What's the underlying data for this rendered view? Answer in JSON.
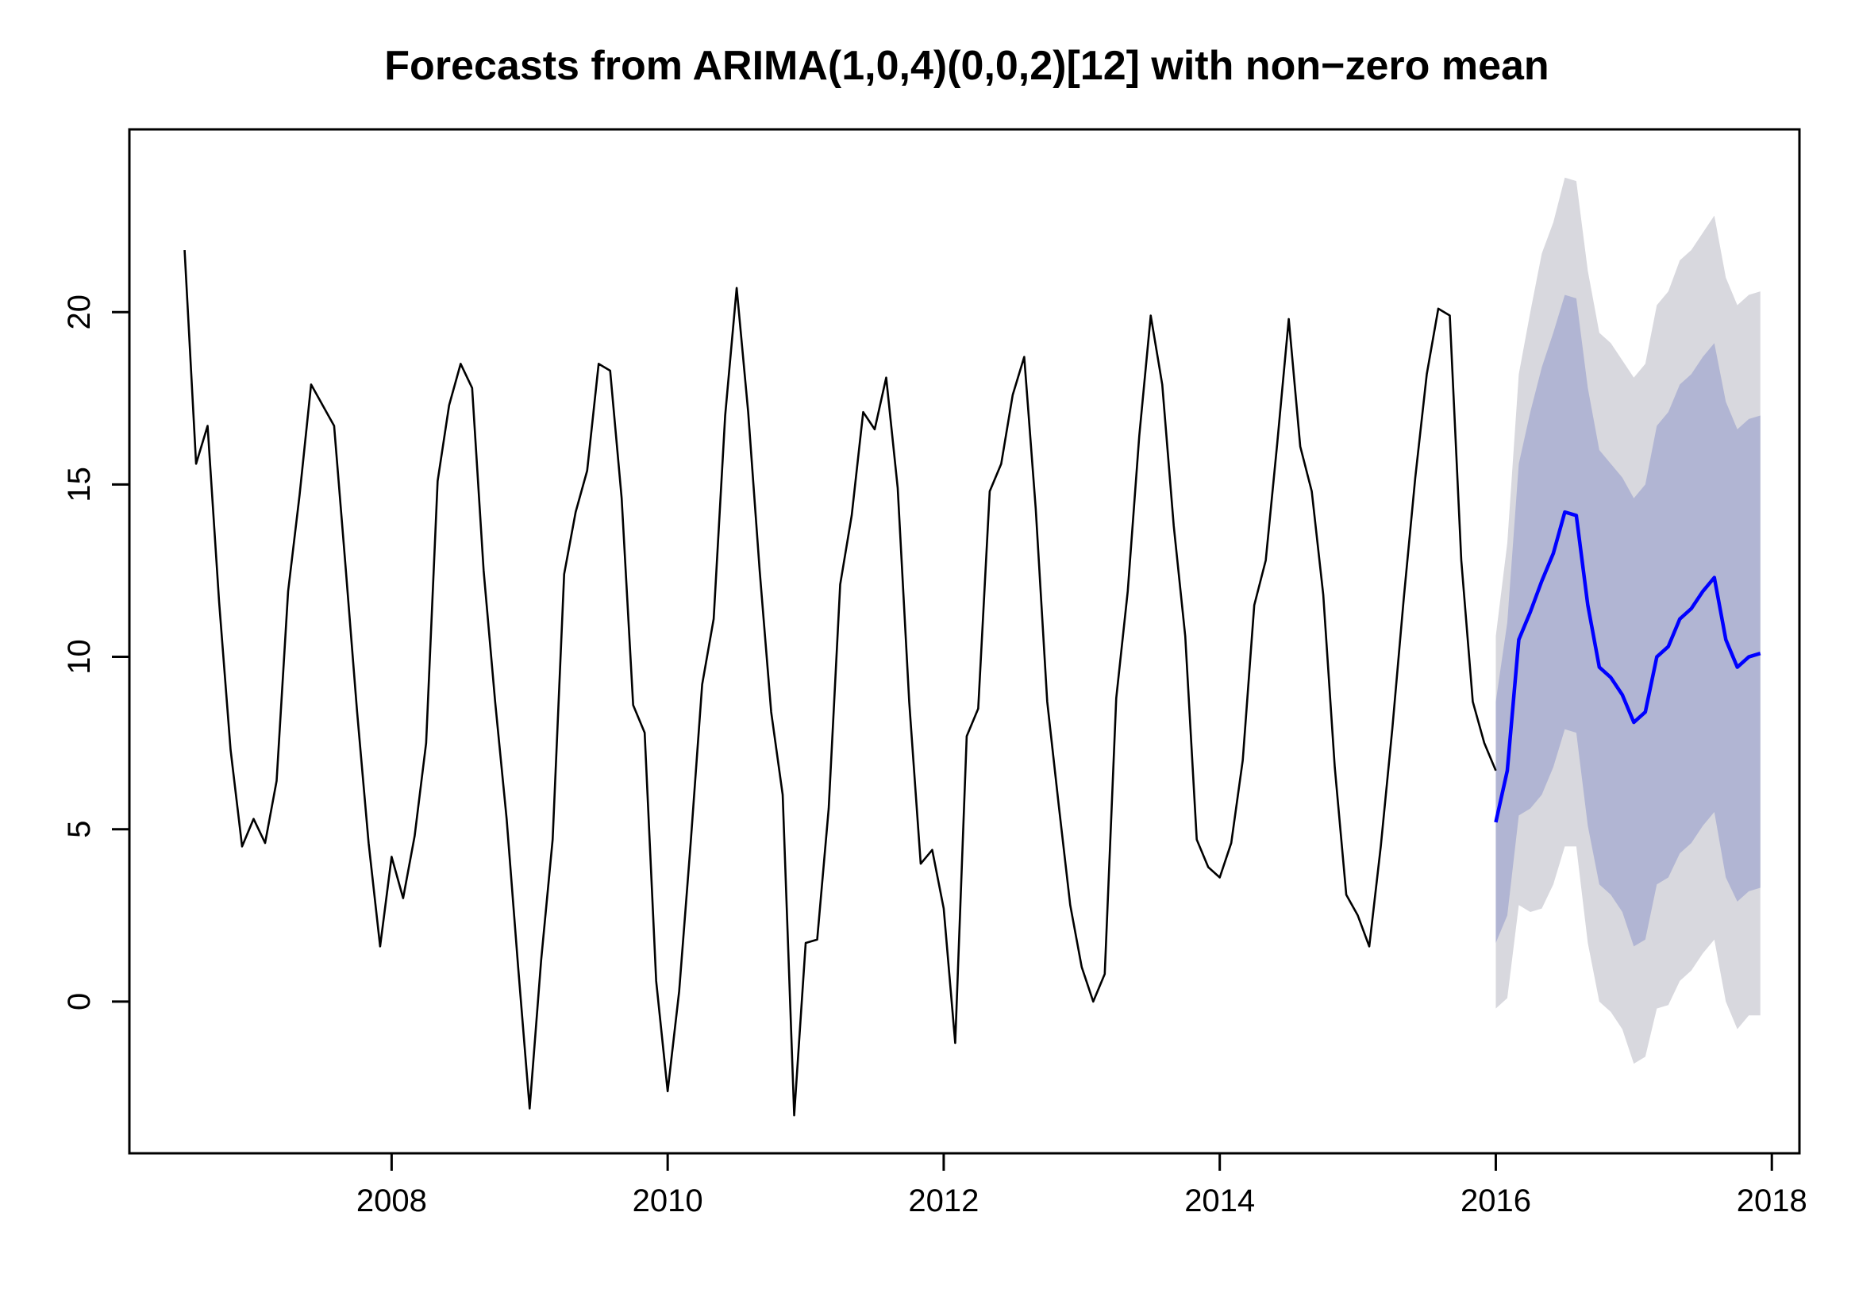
{
  "chart_data": {
    "type": "line",
    "title": "Forecasts from ARIMA(1,0,4)(0,0,2)[12] with non−zero mean",
    "xlabel": "",
    "ylabel": "",
    "x_ticks": [
      "2008",
      "2010",
      "2012",
      "2014",
      "2016",
      "2018"
    ],
    "y_ticks": [
      "0",
      "5",
      "10",
      "15",
      "20"
    ],
    "xlim": [
      2006.1,
      2018.2
    ],
    "ylim": [
      -4.4,
      25.3
    ],
    "grid": false,
    "colors": {
      "observed": "#000000",
      "forecast": "#0000ff",
      "band_80": "#b1b5d3",
      "band_95": "#d8d8de",
      "axis": "#000000"
    },
    "observed": {
      "start": 2006.5,
      "frequency": 12,
      "values": [
        21.8,
        15.6,
        16.7,
        11.6,
        7.3,
        4.5,
        5.3,
        4.6,
        6.4,
        11.9,
        14.7,
        17.9,
        17.3,
        16.7,
        12.6,
        8.4,
        4.6,
        1.6,
        4.2,
        3.0,
        4.8,
        7.5,
        15.1,
        17.3,
        18.5,
        17.8,
        12.5,
        8.7,
        5.3,
        1.0,
        -3.1,
        1.2,
        4.7,
        12.4,
        14.2,
        15.4,
        18.5,
        18.3,
        14.6,
        8.6,
        7.8,
        0.6,
        -2.6,
        0.3,
        4.6,
        9.2,
        11.1,
        17.0,
        20.7,
        17.1,
        12.5,
        8.4,
        6.0,
        -3.3,
        1.7,
        1.8,
        5.6,
        12.1,
        14.1,
        17.1,
        16.6,
        18.1,
        14.9,
        8.7,
        4.0,
        4.4,
        2.7,
        -1.2,
        7.7,
        8.5,
        14.8,
        15.6,
        17.6,
        18.7,
        14.3,
        8.7,
        5.7,
        2.8,
        1.0,
        0.0,
        0.8,
        8.8,
        11.9,
        16.4,
        19.9,
        17.9,
        13.8,
        10.6,
        4.7,
        3.9,
        3.6,
        4.6,
        7.0,
        11.5,
        12.8,
        16.2,
        19.8,
        16.1,
        14.8,
        11.8,
        6.8,
        3.1,
        2.5,
        1.6,
        4.5,
        7.9,
        11.7,
        15.2,
        18.2,
        20.1,
        19.9,
        12.8,
        8.7,
        7.5,
        6.7
      ]
    },
    "forecast": {
      "start": 2016.0,
      "frequency": 12,
      "values": [
        5.2,
        6.7,
        10.5,
        11.3,
        12.2,
        13.0,
        14.2,
        14.1,
        11.5,
        9.7,
        9.4,
        8.9,
        8.1,
        8.4,
        10.0,
        10.3,
        11.1,
        11.4,
        11.9,
        12.3,
        10.5,
        9.7,
        10.0,
        10.1
      ]
    },
    "series": [
      {
        "name": "observed",
        "color": "#000000"
      },
      {
        "name": "forecast",
        "color": "#0000ff"
      }
    ],
    "bands": {
      "lo80": [
        1.7,
        2.5,
        5.4,
        5.6,
        6.0,
        6.8,
        7.9,
        7.8,
        5.1,
        3.4,
        3.1,
        2.6,
        1.6,
        1.8,
        3.4,
        3.6,
        4.3,
        4.6,
        5.1,
        5.5,
        3.6,
        2.9,
        3.2,
        3.3
      ],
      "hi80": [
        8.7,
        11.0,
        15.6,
        17.1,
        18.4,
        19.4,
        20.5,
        20.4,
        17.8,
        16.0,
        15.6,
        15.2,
        14.6,
        15.0,
        16.7,
        17.1,
        17.9,
        18.2,
        18.7,
        19.1,
        17.4,
        16.6,
        16.9,
        17.0
      ],
      "lo95": [
        -0.2,
        0.1,
        2.8,
        2.6,
        2.7,
        3.4,
        4.5,
        4.5,
        1.7,
        0.0,
        -0.3,
        -0.8,
        -1.8,
        -1.6,
        -0.2,
        -0.1,
        0.6,
        0.9,
        1.4,
        1.8,
        0.0,
        -0.8,
        -0.4,
        -0.4
      ],
      "hi95": [
        10.6,
        13.3,
        18.2,
        20.0,
        21.7,
        22.6,
        23.9,
        23.8,
        21.2,
        19.4,
        19.1,
        18.6,
        18.1,
        18.5,
        20.2,
        20.6,
        21.5,
        21.8,
        22.3,
        22.8,
        21.0,
        20.2,
        20.5,
        20.6
      ]
    }
  }
}
